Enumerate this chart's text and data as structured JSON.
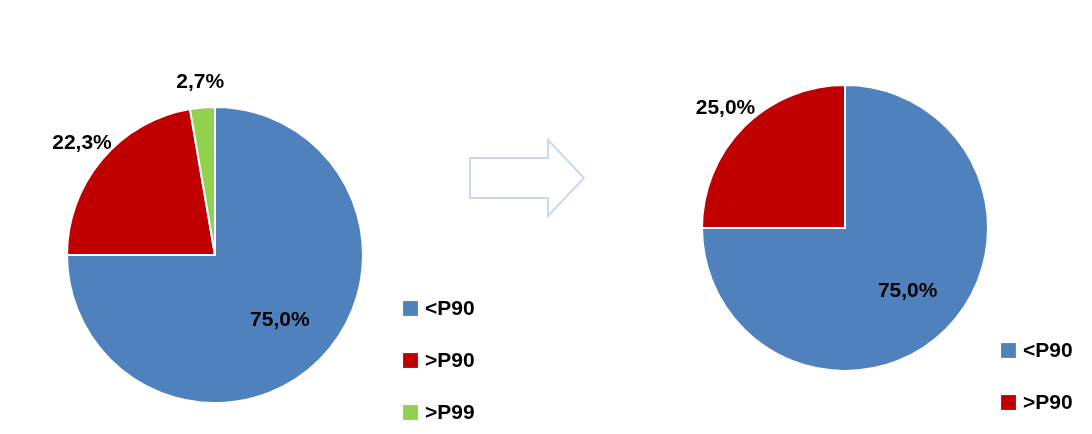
{
  "chart_data": [
    {
      "type": "pie",
      "categories": [
        "<P90",
        ">P90",
        ">P99"
      ],
      "values": [
        75.0,
        22.3,
        2.7
      ],
      "colors": [
        "#4f81bd",
        "#c00000",
        "#92d050"
      ],
      "value_labels": [
        "75,0%",
        "22,3%",
        "2,7%"
      ],
      "legend": "bottom right"
    },
    {
      "type": "pie",
      "categories": [
        "<P90",
        ">P90"
      ],
      "values": [
        75.0,
        25.0
      ],
      "colors": [
        "#4f81bd",
        "#c00000"
      ],
      "value_labels": [
        "75,0%",
        "25,0%"
      ],
      "legend": "bottom right"
    }
  ]
}
